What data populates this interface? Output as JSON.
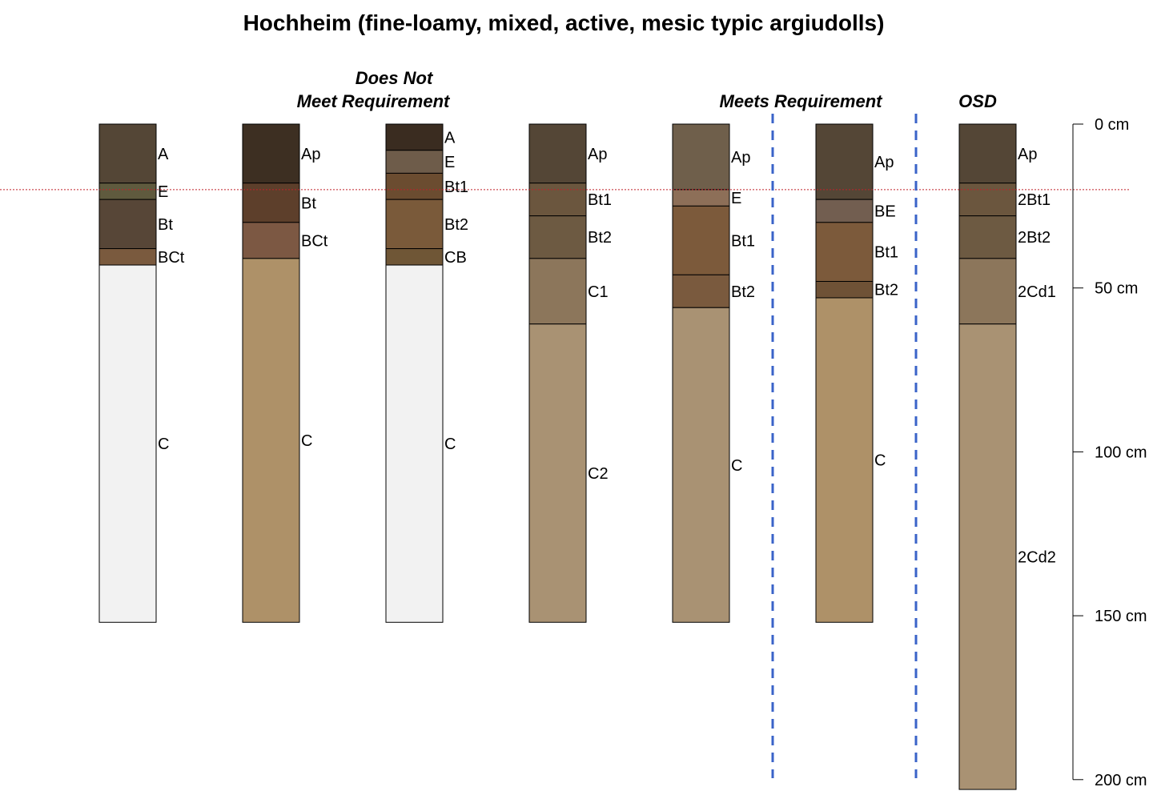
{
  "title": "Hochheim (fine-loamy, mixed, active, mesic typic argiudolls)",
  "group_labels": {
    "does_not_line1": "Does Not",
    "does_not_line2": "Meet Requirement",
    "meets": "Meets Requirement",
    "osd": "OSD"
  },
  "depth_axis": {
    "ticks": [
      0,
      50,
      100,
      150,
      200
    ],
    "tick_labels": [
      "0 cm",
      "50 cm",
      "100 cm",
      "150 cm",
      "200 cm"
    ],
    "range": [
      0,
      200
    ]
  },
  "reference_line_depth": 20,
  "profiles": [
    {
      "horizons": [
        {
          "name": "A",
          "top": 0,
          "bottom": 18,
          "color": "#544636"
        },
        {
          "name": "E",
          "top": 18,
          "bottom": 23,
          "color": "#5f5a3e"
        },
        {
          "name": "Bt",
          "top": 23,
          "bottom": 38,
          "color": "#574637"
        },
        {
          "name": "BCt",
          "top": 38,
          "bottom": 43,
          "color": "#7a5a3e"
        },
        {
          "name": "C",
          "top": 43,
          "bottom": 152,
          "color": "#f2f2f2"
        }
      ]
    },
    {
      "horizons": [
        {
          "name": "Ap",
          "top": 0,
          "bottom": 18,
          "color": "#3d2f22"
        },
        {
          "name": "Bt",
          "top": 18,
          "bottom": 30,
          "color": "#5d3f2b"
        },
        {
          "name": "BCt",
          "top": 30,
          "bottom": 41,
          "color": "#7c5843"
        },
        {
          "name": "C",
          "top": 41,
          "bottom": 152,
          "color": "#ae9168"
        }
      ]
    },
    {
      "horizons": [
        {
          "name": "A",
          "top": 0,
          "bottom": 8,
          "color": "#3a2c20"
        },
        {
          "name": "E",
          "top": 8,
          "bottom": 15,
          "color": "#6e5c4a"
        },
        {
          "name": "Bt1",
          "top": 15,
          "bottom": 23,
          "color": "#6b4c30"
        },
        {
          "name": "Bt2",
          "top": 23,
          "bottom": 38,
          "color": "#7a5a3a"
        },
        {
          "name": "CB",
          "top": 38,
          "bottom": 43,
          "color": "#6f5636"
        },
        {
          "name": "C",
          "top": 43,
          "bottom": 152,
          "color": "#f2f2f2"
        }
      ]
    },
    {
      "horizons": [
        {
          "name": "Ap",
          "top": 0,
          "bottom": 18,
          "color": "#544636"
        },
        {
          "name": "Bt1",
          "top": 18,
          "bottom": 28,
          "color": "#6b563e"
        },
        {
          "name": "Bt2",
          "top": 28,
          "bottom": 41,
          "color": "#6d5a42"
        },
        {
          "name": "C1",
          "top": 41,
          "bottom": 61,
          "color": "#8c765b"
        },
        {
          "name": "C2",
          "top": 61,
          "bottom": 152,
          "color": "#a99273"
        }
      ]
    },
    {
      "horizons": [
        {
          "name": "Ap",
          "top": 0,
          "bottom": 20,
          "color": "#6f5f4b"
        },
        {
          "name": "E",
          "top": 20,
          "bottom": 25,
          "color": "#8d6f58"
        },
        {
          "name": "Bt1",
          "top": 25,
          "bottom": 46,
          "color": "#7c5a3b"
        },
        {
          "name": "Bt2",
          "top": 46,
          "bottom": 56,
          "color": "#7a5a3e"
        },
        {
          "name": "C",
          "top": 56,
          "bottom": 152,
          "color": "#a99273"
        }
      ]
    },
    {
      "horizons": [
        {
          "name": "Ap",
          "top": 0,
          "bottom": 23,
          "color": "#544636"
        },
        {
          "name": "BE",
          "top": 23,
          "bottom": 30,
          "color": "#725e50"
        },
        {
          "name": "Bt1",
          "top": 30,
          "bottom": 48,
          "color": "#7c5a3b"
        },
        {
          "name": "Bt2",
          "top": 48,
          "bottom": 53,
          "color": "#6f5236"
        },
        {
          "name": "C",
          "top": 53,
          "bottom": 152,
          "color": "#ae9168"
        }
      ]
    },
    {
      "horizons": [
        {
          "name": "Ap",
          "top": 0,
          "bottom": 18,
          "color": "#544636"
        },
        {
          "name": "2Bt1",
          "top": 18,
          "bottom": 28,
          "color": "#6b563e"
        },
        {
          "name": "2Bt2",
          "top": 28,
          "bottom": 41,
          "color": "#6d5a42"
        },
        {
          "name": "2Cd1",
          "top": 41,
          "bottom": 61,
          "color": "#8c765b"
        },
        {
          "name": "2Cd2",
          "top": 61,
          "bottom": 203,
          "color": "#a99273"
        }
      ]
    }
  ]
}
